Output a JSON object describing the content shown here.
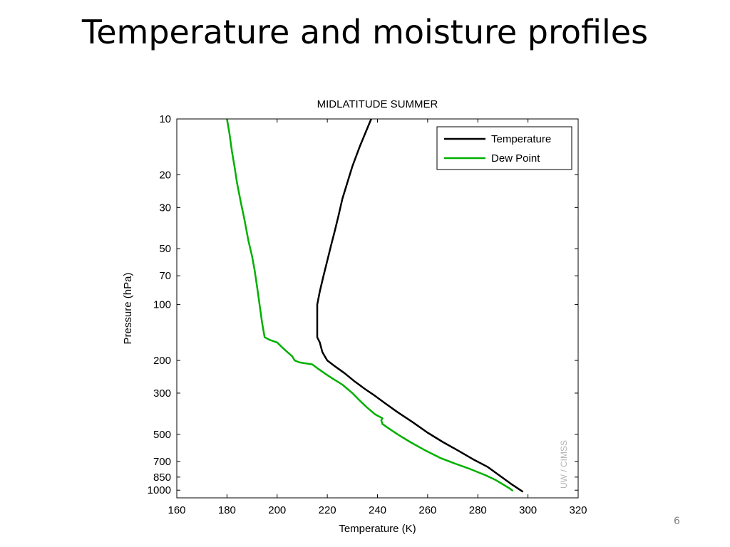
{
  "slide": {
    "title": "Temperature and moisture profiles",
    "page_number": "6"
  },
  "chart_data": {
    "type": "line",
    "title": "MIDLATITUDE SUMMER",
    "xlabel": "Temperature (K)",
    "ylabel": "Pressure (hPa)",
    "xlim": [
      160,
      320
    ],
    "ylim": [
      10,
      1100
    ],
    "y_scale": "log",
    "y_inverted": true,
    "x_ticks": [
      160,
      180,
      200,
      220,
      240,
      260,
      280,
      300,
      320
    ],
    "y_ticks": [
      10,
      20,
      30,
      50,
      70,
      100,
      200,
      300,
      500,
      700,
      850,
      1000
    ],
    "grid": false,
    "legend_position": "top-right",
    "watermark": "UW / CIMSS",
    "series": [
      {
        "name": "Temperature",
        "color": "#000000",
        "points": [
          [
            237.5,
            10
          ],
          [
            233,
            14
          ],
          [
            230,
            18
          ],
          [
            228,
            22
          ],
          [
            226,
            27
          ],
          [
            224.5,
            33
          ],
          [
            223,
            40
          ],
          [
            221.5,
            48
          ],
          [
            220,
            58
          ],
          [
            218.5,
            70
          ],
          [
            217,
            85
          ],
          [
            216,
            100
          ],
          [
            216,
            120
          ],
          [
            216,
            140
          ],
          [
            216,
            150
          ],
          [
            217,
            160
          ],
          [
            218,
            180
          ],
          [
            219,
            190
          ],
          [
            220,
            200
          ],
          [
            223,
            215
          ],
          [
            227,
            235
          ],
          [
            231,
            260
          ],
          [
            235,
            285
          ],
          [
            239,
            310
          ],
          [
            243,
            340
          ],
          [
            248,
            380
          ],
          [
            254,
            430
          ],
          [
            260,
            490
          ],
          [
            266,
            550
          ],
          [
            272,
            610
          ],
          [
            278,
            680
          ],
          [
            284,
            750
          ],
          [
            289,
            840
          ],
          [
            293,
            920
          ],
          [
            297,
            1000
          ],
          [
            298,
            1020
          ]
        ]
      },
      {
        "name": "Dew Point",
        "color": "#00b000",
        "points": [
          [
            180,
            10
          ],
          [
            181,
            12
          ],
          [
            182,
            15
          ],
          [
            183,
            18
          ],
          [
            184,
            22
          ],
          [
            185.5,
            28
          ],
          [
            187,
            35
          ],
          [
            188.5,
            45
          ],
          [
            190,
            55
          ],
          [
            191,
            65
          ],
          [
            192,
            80
          ],
          [
            193,
            100
          ],
          [
            194,
            125
          ],
          [
            195,
            150
          ],
          [
            197,
            155
          ],
          [
            200,
            160
          ],
          [
            202,
            170
          ],
          [
            204,
            180
          ],
          [
            206,
            190
          ],
          [
            207,
            200
          ],
          [
            209,
            205
          ],
          [
            214,
            210
          ],
          [
            216,
            220
          ],
          [
            219,
            235
          ],
          [
            222,
            250
          ],
          [
            226,
            270
          ],
          [
            230,
            300
          ],
          [
            233,
            330
          ],
          [
            236,
            360
          ],
          [
            239,
            390
          ],
          [
            242,
            410
          ],
          [
            241.5,
            420
          ],
          [
            242,
            440
          ],
          [
            244,
            460
          ],
          [
            248,
            500
          ],
          [
            253,
            550
          ],
          [
            259,
            610
          ],
          [
            265,
            670
          ],
          [
            271,
            720
          ],
          [
            277,
            770
          ],
          [
            283,
            830
          ],
          [
            287,
            880
          ],
          [
            290,
            930
          ],
          [
            292.5,
            975
          ],
          [
            294,
            1010
          ]
        ]
      }
    ]
  }
}
